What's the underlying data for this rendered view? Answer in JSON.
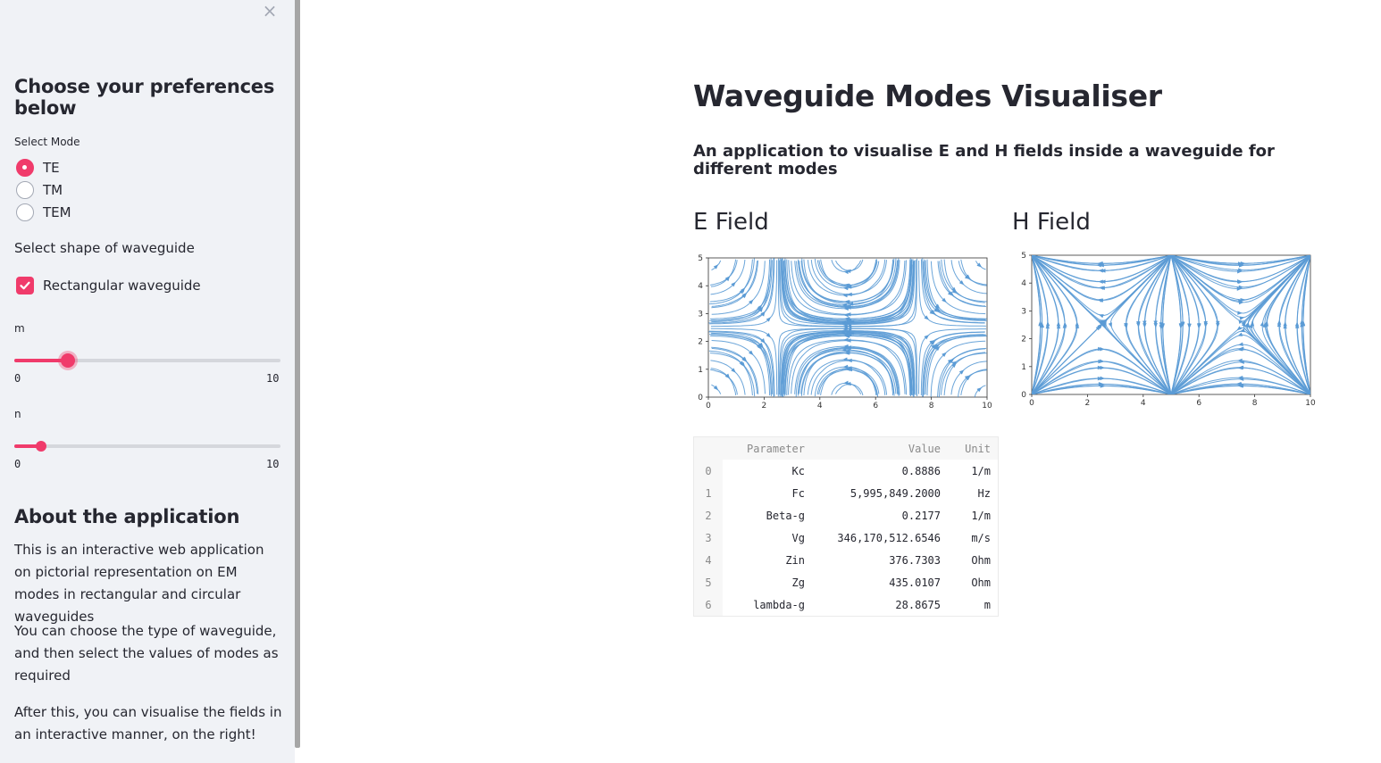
{
  "sidebar": {
    "close_icon": "×",
    "heading": "Choose your preferences below",
    "mode_label": "Select Mode",
    "modes": [
      {
        "label": "TE",
        "selected": true
      },
      {
        "label": "TM",
        "selected": false
      },
      {
        "label": "TEM",
        "selected": false
      }
    ],
    "shape_label": "Select shape of waveguide",
    "checkbox_label": "Rectangular waveguide",
    "checkbox_checked": true,
    "sliders": [
      {
        "label": "m",
        "min": "0",
        "max": "10",
        "value": 2
      },
      {
        "label": "n",
        "min": "0",
        "max": "10",
        "value": 1
      }
    ],
    "about_heading": "About the application",
    "about_paragraphs": [
      "This is an interactive web application on pictorial representation on EM modes in rectangular and circular waveguides",
      "You can choose the type of waveguide, and then select the values of modes as required",
      "After this, you can visualise the fields in an interactive manner, on the right!"
    ]
  },
  "main": {
    "title": "Waveguide Modes Visualiser",
    "subtitle": "An application to visualise E and H fields inside a waveguide for different modes",
    "e_field_title": "E Field",
    "h_field_title": "H Field",
    "table": {
      "headers": [
        "Parameter",
        "Value",
        "Unit"
      ],
      "rows": [
        {
          "idx": "0",
          "param": "Kc",
          "value": "0.8886",
          "unit": "1/m"
        },
        {
          "idx": "1",
          "param": "Fc",
          "value": "5,995,849.2000",
          "unit": "Hz"
        },
        {
          "idx": "2",
          "param": "Beta-g",
          "value": "0.2177",
          "unit": "1/m"
        },
        {
          "idx": "3",
          "param": "Vg",
          "value": "346,170,512.6546",
          "unit": "m/s"
        },
        {
          "idx": "4",
          "param": "Zin",
          "value": "376.7303",
          "unit": "Ohm"
        },
        {
          "idx": "5",
          "param": "Zg",
          "value": "435.0107",
          "unit": "Ohm"
        },
        {
          "idx": "6",
          "param": "lambda-g",
          "value": "28.8675",
          "unit": "m"
        }
      ]
    }
  },
  "chart_data": [
    {
      "type": "streamplot",
      "title": "E Field",
      "x_ticks": [
        "0",
        "2",
        "4",
        "6",
        "8",
        "10"
      ],
      "y_ticks": [
        "0",
        "1",
        "2",
        "3",
        "4",
        "5"
      ],
      "xlim": [
        0,
        10
      ],
      "ylim": [
        0,
        5
      ],
      "line_color": "#5b9bd5"
    },
    {
      "type": "streamplot",
      "title": "H Field",
      "x_ticks": [
        "0",
        "2",
        "4",
        "6",
        "8",
        "10"
      ],
      "y_ticks": [
        "0",
        "1",
        "2",
        "3",
        "4",
        "5"
      ],
      "xlim": [
        0,
        10
      ],
      "ylim": [
        0,
        5
      ],
      "line_color": "#5b9bd5"
    }
  ],
  "colors": {
    "accent": "#f03b6b",
    "sidebar_bg": "#f0f2f6",
    "text": "#262730",
    "stream": "#5b9bd5"
  }
}
